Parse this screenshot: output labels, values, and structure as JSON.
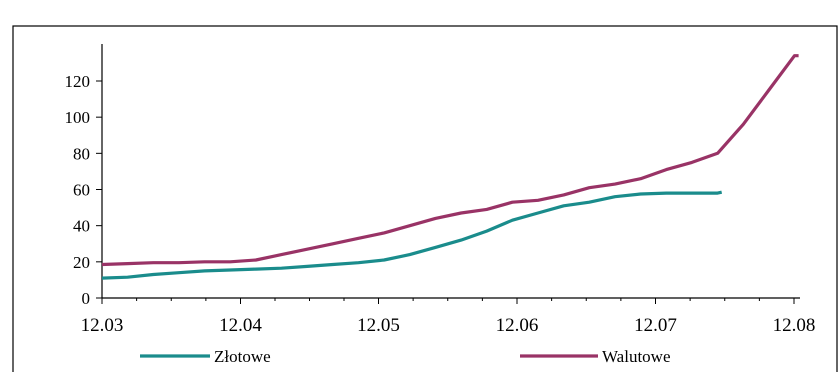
{
  "chart_data": {
    "type": "line",
    "title": "",
    "xlabel": "",
    "ylabel": "",
    "ylim": [
      0,
      135
    ],
    "yticks": [
      "0",
      "20",
      "40",
      "60",
      "80",
      "100",
      "120"
    ],
    "xticks": [
      "12.03",
      "12.04",
      "12.05",
      "12.06",
      "12.07",
      "12.08"
    ],
    "legend_position": "bottom",
    "grid": false,
    "series": [
      {
        "name": "Złotowe",
        "color": "#1a8c8c",
        "points": [
          [
            0.0,
            11
          ],
          [
            0.25,
            11.5
          ],
          [
            0.5,
            13
          ],
          [
            0.75,
            14
          ],
          [
            1.0,
            15
          ],
          [
            1.25,
            15.5
          ],
          [
            1.5,
            16
          ],
          [
            1.75,
            16.5
          ],
          [
            2.0,
            17.5
          ],
          [
            2.25,
            18.5
          ],
          [
            2.5,
            19.5
          ],
          [
            2.75,
            21
          ],
          [
            3.0,
            24
          ],
          [
            3.25,
            28
          ],
          [
            3.5,
            32
          ],
          [
            3.75,
            37
          ],
          [
            4.0,
            43
          ],
          [
            4.25,
            47
          ],
          [
            4.5,
            51
          ],
          [
            4.75,
            53
          ],
          [
            5.0,
            56
          ],
          [
            5.25,
            57.5
          ],
          [
            5.5,
            58
          ],
          [
            5.75,
            58
          ],
          [
            6.0,
            58
          ],
          [
            6.04,
            58.5
          ]
        ]
      },
      {
        "name": "Walutowe",
        "color": "#993366",
        "points": [
          [
            0.0,
            18.5
          ],
          [
            0.25,
            19
          ],
          [
            0.5,
            19.5
          ],
          [
            0.75,
            19.5
          ],
          [
            1.0,
            20
          ],
          [
            1.25,
            20
          ],
          [
            1.5,
            21
          ],
          [
            1.75,
            24
          ],
          [
            2.0,
            27
          ],
          [
            2.25,
            30
          ],
          [
            2.5,
            33
          ],
          [
            2.75,
            36
          ],
          [
            3.0,
            40
          ],
          [
            3.25,
            44
          ],
          [
            3.5,
            47
          ],
          [
            3.75,
            49
          ],
          [
            4.0,
            53
          ],
          [
            4.25,
            54
          ],
          [
            4.5,
            57
          ],
          [
            4.75,
            61
          ],
          [
            5.0,
            63
          ],
          [
            5.25,
            66
          ],
          [
            5.5,
            71
          ],
          [
            5.75,
            75
          ],
          [
            6.0,
            80
          ],
          [
            6.25,
            96
          ],
          [
            6.5,
            115
          ],
          [
            6.75,
            134
          ],
          [
            6.79,
            134
          ]
        ]
      }
    ]
  }
}
